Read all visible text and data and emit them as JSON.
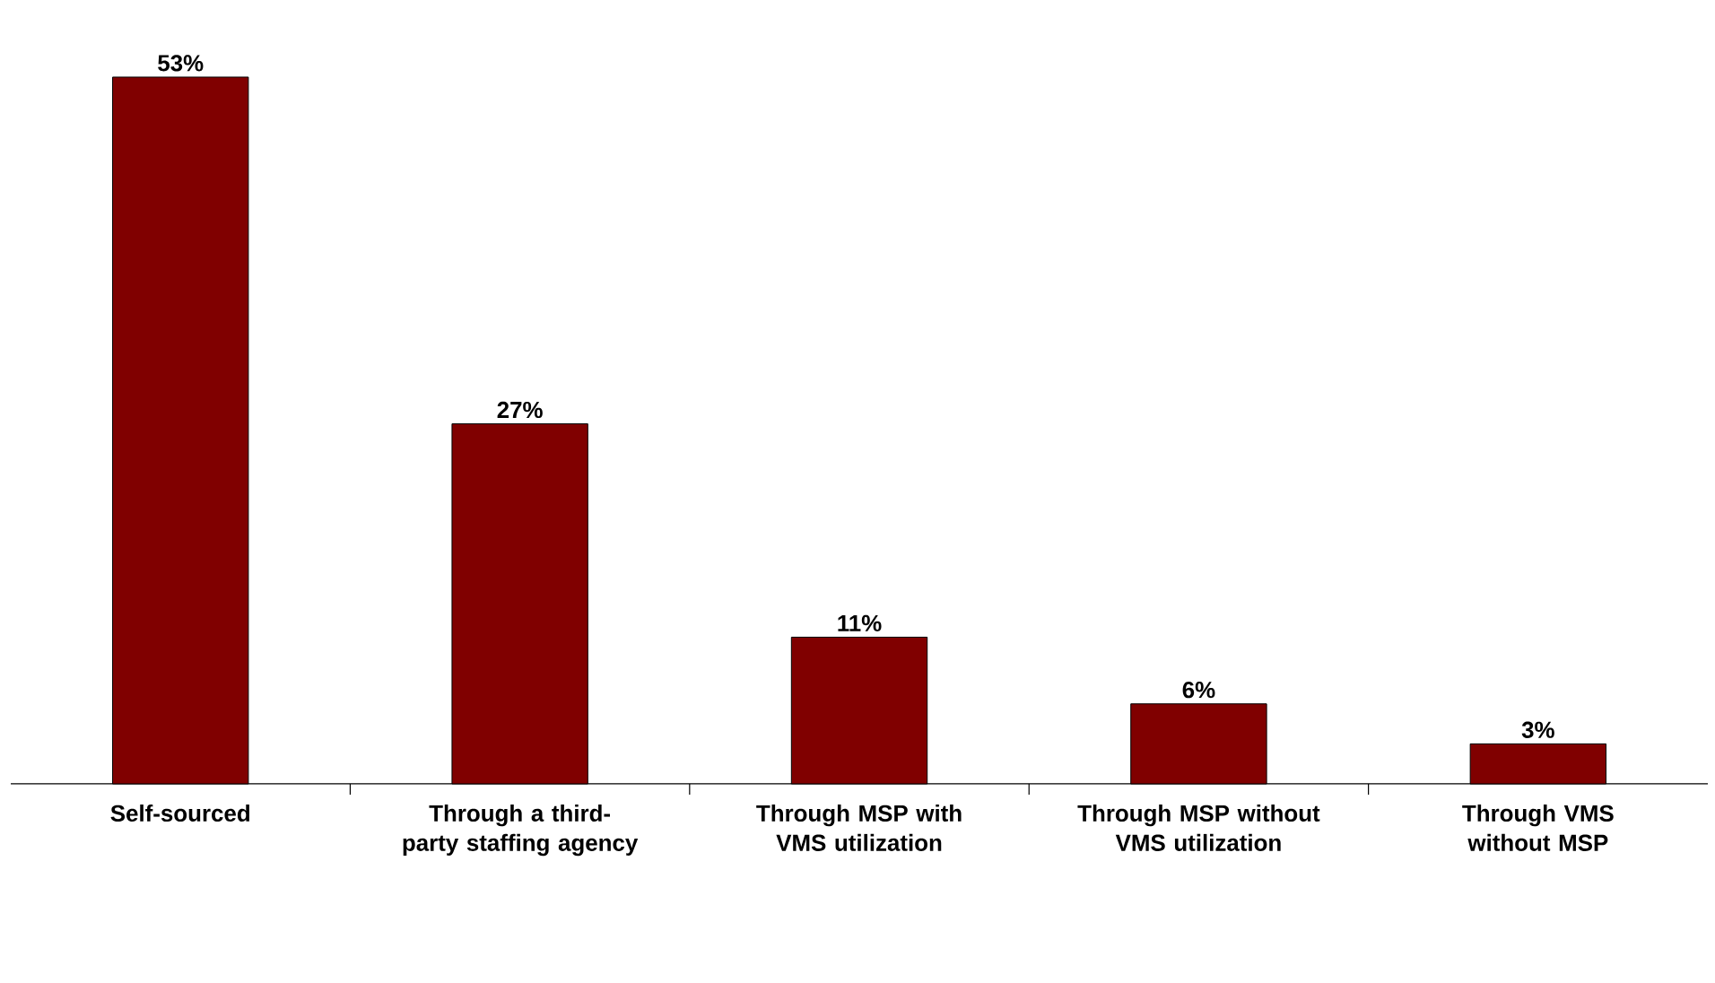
{
  "chart_data": {
    "type": "bar",
    "categories": [
      "Self-sourced",
      "Through a third-party staffing agency",
      "Through MSP with VMS utilization",
      "Through MSP without VMS utilization",
      "Through VMS without MSP"
    ],
    "values": [
      53,
      27,
      11,
      6,
      3
    ],
    "value_labels": [
      "53%",
      "27%",
      "11%",
      "6%",
      "3%"
    ],
    "color": "#800000"
  }
}
